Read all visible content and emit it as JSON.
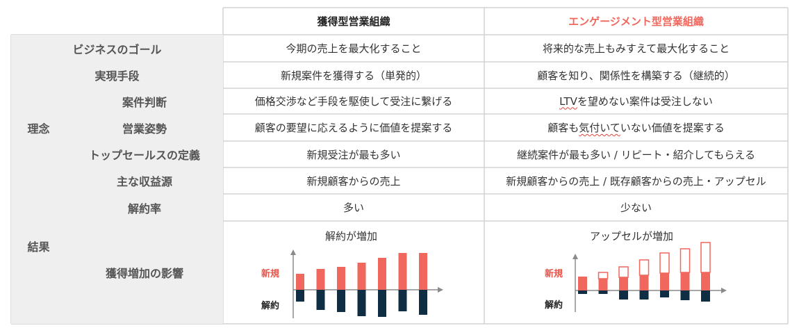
{
  "header": {
    "col1": "獲得型営業組織",
    "col2": "エンゲージメント型営業組織"
  },
  "rows": {
    "goal": {
      "label": "ビジネスのゴール",
      "col1": "今期の売上を最大化すること",
      "col2": "将来的な売上もみすえて最大化すること"
    },
    "means": {
      "label": "実現手段",
      "col1": "新規案件を獲得する（単発的）",
      "col2": "顧客を知り、関係性を構築する（継続的）"
    },
    "judge": {
      "label": "案件判断",
      "col1": "価格交渉など手段を駆使して受注に繋げる",
      "col2_prefix": "LTV",
      "col2_rest": " を望めない案件は受注しない"
    },
    "stance": {
      "label": "営業姿勢",
      "col1": "顧客の要望に応えるように価値を提案する",
      "col2_a": "顧客も",
      "col2_b": "気付いて",
      "col2_c": "いない価値を提案する"
    },
    "top": {
      "label": "トップセールスの定義",
      "col1": "新規受注が最も多い",
      "col2": "継続案件が最も多い / リピート・紹介してもらえる"
    },
    "revenue": {
      "label": "主な収益源",
      "col1": "新規顧客からの売上",
      "col2": "新規顧客からの売上 / 既存顧客からの売上・アップセル"
    },
    "churn": {
      "label": "解約率",
      "col1": "多い",
      "col2": "少ない"
    },
    "impact": {
      "label": "獲得増加の影響"
    }
  },
  "groups": {
    "philosophy": "理念",
    "result": "結果"
  },
  "charts": {
    "left_title": "解約が増加",
    "right_title": "アップセルが増加",
    "new_label": "新規",
    "churn_label": "解約"
  },
  "colors": {
    "accent": "#f0675d",
    "navy": "#0f2e44",
    "label_bg": "#efefef",
    "border": "#d4d4d4",
    "new_label": "#e8554b"
  },
  "chart_data": [
    {
      "type": "bar",
      "title": "解約が増加",
      "categories": [
        "1",
        "2",
        "3",
        "4",
        "5",
        "6",
        "7"
      ],
      "series": [
        {
          "name": "新規",
          "values": [
            2.3,
            3.0,
            3.3,
            3.9,
            4.6,
            5.3,
            5.3
          ]
        },
        {
          "name": "解約",
          "values": [
            -1.7,
            -2.9,
            -3.2,
            -3.8,
            -3.9,
            -3.1,
            -3.6
          ]
        }
      ]
    },
    {
      "type": "bar",
      "title": "アップセルが増加",
      "categories": [
        "1",
        "2",
        "3",
        "4",
        "5",
        "6",
        "7"
      ],
      "series": [
        {
          "name": "新規",
          "values": [
            2.0,
            1.7,
            1.9,
            2.2,
            2.5,
            2.6,
            2.6
          ]
        },
        {
          "name": "アップセル",
          "values": [
            0,
            0.9,
            1.5,
            2.2,
            2.9,
            3.4,
            4.3
          ]
        },
        {
          "name": "解約",
          "values": [
            -0.5,
            -0.5,
            -1.3,
            -1.3,
            -1.0,
            -1.4,
            -1.6
          ]
        }
      ]
    }
  ]
}
